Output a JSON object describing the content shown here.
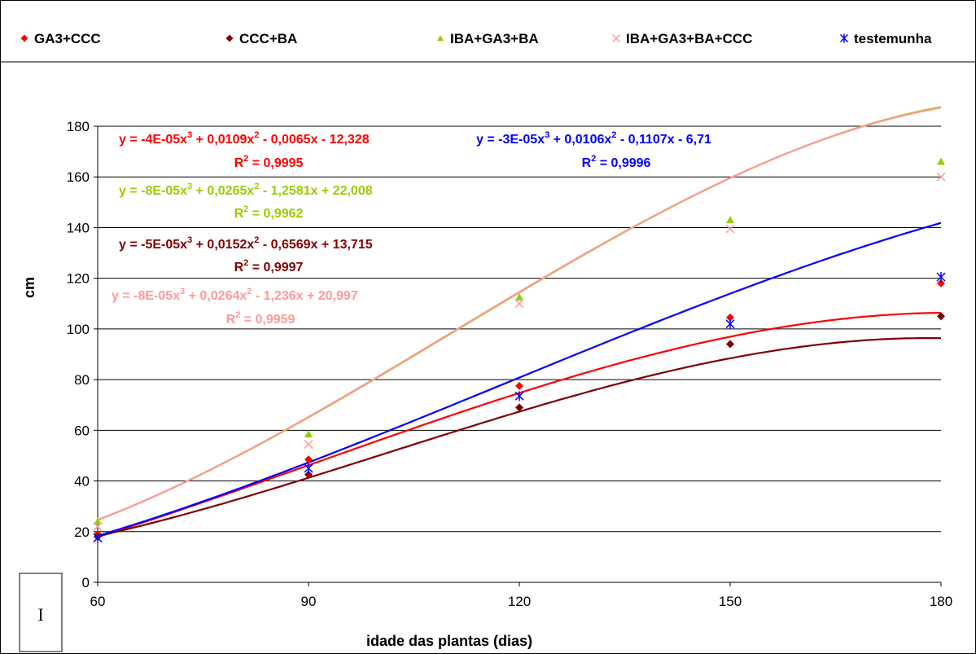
{
  "chart_data": {
    "type": "scatter",
    "title": "",
    "xlabel": "idade das plantas (dias)",
    "ylabel": "cm",
    "xlim": [
      60,
      180
    ],
    "ylim": [
      0,
      180
    ],
    "xticks": [
      60,
      90,
      120,
      150,
      180
    ],
    "yticks": [
      0,
      20,
      40,
      60,
      80,
      100,
      120,
      140,
      160,
      180
    ],
    "grid": "horizontal",
    "legend_position": "top",
    "panel_label": "I",
    "x": [
      60,
      90,
      120,
      150,
      180
    ],
    "series": [
      {
        "name": "GA3+CCC",
        "marker": "diamond",
        "color": "#ff0000",
        "values": [
          19,
          48.5,
          77.5,
          104.5,
          118
        ],
        "trendline": {
          "a": -4e-05,
          "b": 0.0109,
          "c": -0.0065,
          "d": -12.328
        },
        "equation": {
          "y": "y = -4E-05x",
          "mid": " + 0,0109x",
          "tail": " - 0,0065x - 12,328",
          "r2": "= 0,9995"
        }
      },
      {
        "name": "CCC+BA",
        "marker": "diamond",
        "color": "#800000",
        "values": [
          18,
          42.5,
          69,
          94,
          105
        ],
        "trendline": {
          "a": -5e-05,
          "b": 0.0152,
          "c": -0.6569,
          "d": 13.715
        },
        "equation": {
          "y": "y = -5E-05x",
          "mid": " + 0,0152x",
          "tail": " - 0,6569x + 13,715",
          "r2": "= 0,9997"
        }
      },
      {
        "name": "IBA+GA3+BA",
        "marker": "triangle",
        "color": "#99cc00",
        "values": [
          24,
          58.5,
          112.5,
          143,
          166
        ],
        "trendline": {
          "a": -8e-05,
          "b": 0.0265,
          "c": -1.2581,
          "d": 22.008
        },
        "equation": {
          "y": "y = -8E-05x",
          "mid": " + 0,0265x",
          "tail": " - 1,2581x + 22,008",
          "r2": "= 0,9962"
        }
      },
      {
        "name": "IBA+GA3+BA+CCC",
        "marker": "x",
        "color": "#ff9999",
        "values": [
          22,
          54.5,
          110,
          139.5,
          160
        ],
        "trendline": {
          "a": -8e-05,
          "b": 0.0264,
          "c": -1.236,
          "d": 20.997
        },
        "equation": {
          "y": "y = -8E-05x",
          "mid": " + 0,0264x",
          "tail": " - 1,236x + 20,997",
          "r2": "= 0,9959"
        }
      },
      {
        "name": "testemunha",
        "marker": "star",
        "color": "#0000ff",
        "values": [
          17.5,
          45,
          73.5,
          102,
          120.5
        ],
        "trendline": {
          "a": -3e-05,
          "b": 0.0106,
          "c": -0.1107,
          "d": -6.71
        },
        "equation": {
          "y": "y = -3E-05x",
          "mid": " + 0,0106x",
          "tail": " - 0,1107x - 6,71",
          "r2": "= 0,9996"
        }
      }
    ]
  }
}
